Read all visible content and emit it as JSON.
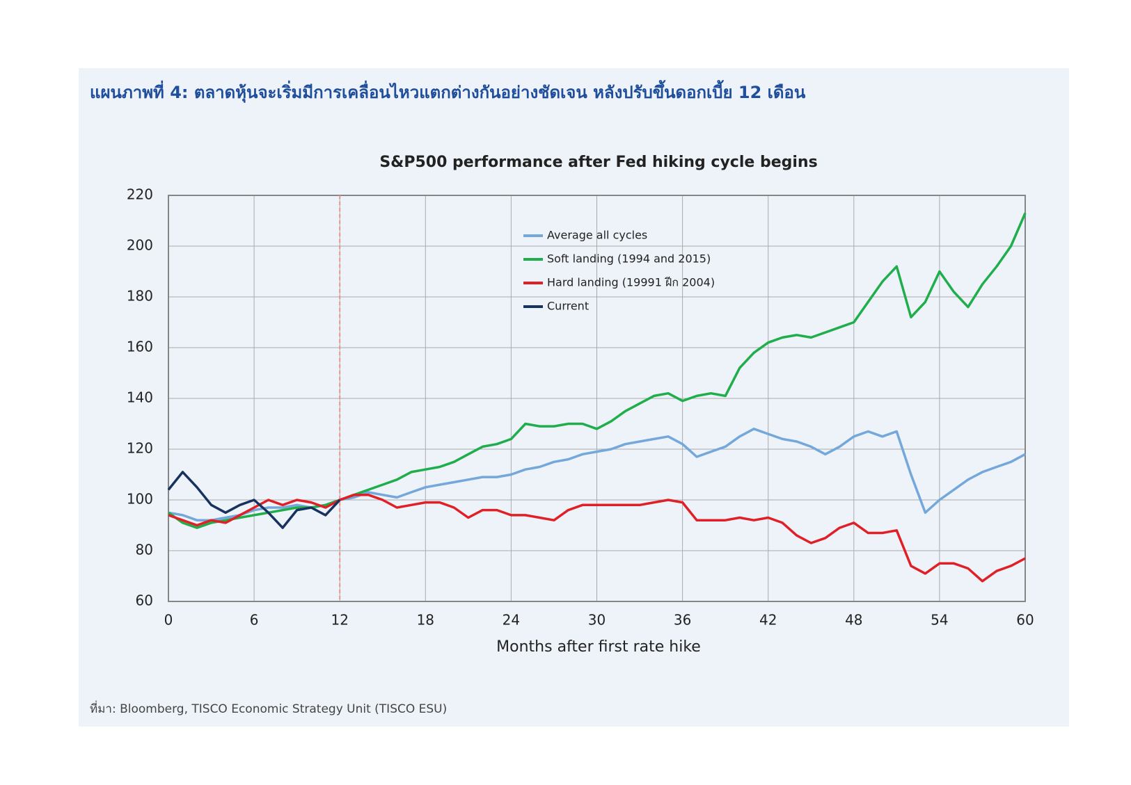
{
  "heading": "แผนภาพที่ 4: ตลาดหุ้นจะเริ่มมีการเคลื่อนไหวแตกต่างกันอย่างชัดเจน หลังปรับขึ้นดอกเบี้ย 12 เดือน",
  "source": "ที่มา: Bloomberg, TISCO Economic Strategy Unit (TISCO ESU)",
  "chart_data": {
    "type": "line",
    "title": "S&P500 performance after Fed hiking cycle begins",
    "x_label": "Months after first rate hike",
    "x": [
      0,
      1,
      2,
      3,
      4,
      5,
      6,
      7,
      8,
      9,
      10,
      11,
      12,
      13,
      14,
      15,
      16,
      17,
      18,
      19,
      20,
      21,
      22,
      23,
      24,
      25,
      26,
      27,
      28,
      29,
      30,
      31,
      32,
      33,
      34,
      35,
      36,
      37,
      38,
      39,
      40,
      41,
      42,
      43,
      44,
      45,
      46,
      47,
      48,
      49,
      50,
      51,
      52,
      53,
      54,
      55,
      56,
      57,
      58,
      59,
      60
    ],
    "xlim": [
      0,
      60
    ],
    "xticks": [
      0,
      6,
      12,
      18,
      24,
      30,
      36,
      42,
      48,
      54,
      60
    ],
    "ylim": [
      60,
      220
    ],
    "yticks": [
      60,
      80,
      100,
      120,
      140,
      160,
      180,
      200,
      220
    ],
    "grid": true,
    "legend": "top-center",
    "reference_line": {
      "x": 12,
      "color": "#f0908a"
    },
    "series": [
      {
        "name": "Average all cycles",
        "color": "#74a7da",
        "values": [
          95,
          94,
          92,
          92,
          93,
          94,
          96,
          97,
          97,
          98,
          97,
          98,
          100,
          101,
          103,
          102,
          101,
          103,
          105,
          106,
          107,
          108,
          109,
          109,
          110,
          112,
          113,
          115,
          116,
          118,
          119,
          120,
          122,
          123,
          124,
          125,
          122,
          117,
          119,
          121,
          125,
          128,
          126,
          124,
          123,
          121,
          118,
          121,
          125,
          127,
          125,
          127,
          110,
          95,
          100,
          104,
          108,
          111,
          113,
          115,
          118
        ]
      },
      {
        "name": "Soft landing (1994 and 2015)",
        "color": "#1fae4b",
        "values": [
          95,
          91,
          89,
          91,
          92,
          93,
          94,
          95,
          96,
          97,
          97,
          98,
          100,
          102,
          104,
          106,
          108,
          111,
          112,
          113,
          115,
          118,
          121,
          122,
          124,
          130,
          129,
          129,
          130,
          130,
          128,
          131,
          135,
          138,
          141,
          142,
          139,
          141,
          142,
          141,
          152,
          158,
          162,
          164,
          165,
          164,
          166,
          168,
          170,
          178,
          186,
          192,
          172,
          178,
          190,
          182,
          176,
          185,
          192,
          200,
          213
        ]
      },
      {
        "name": "Hard landing (19991 ฝีก 2004)",
        "color": "#e02027",
        "values": [
          94,
          92,
          90,
          92,
          91,
          94,
          97,
          100,
          98,
          100,
          99,
          97,
          100,
          102,
          102,
          100,
          97,
          98,
          99,
          99,
          97,
          93,
          96,
          96,
          94,
          94,
          93,
          92,
          96,
          98,
          98,
          98,
          98,
          98,
          99,
          100,
          99,
          92,
          92,
          92,
          93,
          92,
          93,
          91,
          86,
          83,
          85,
          89,
          91,
          87,
          87,
          88,
          74,
          71,
          75,
          75,
          73,
          68,
          72,
          74,
          77
        ]
      },
      {
        "name": "Current",
        "color": "#17325f",
        "values": [
          104,
          111,
          105,
          98,
          95,
          98,
          100,
          95,
          89,
          96,
          97,
          94,
          100,
          null,
          null,
          null,
          null,
          null,
          null,
          null,
          null,
          null,
          null,
          null,
          null,
          null,
          null,
          null,
          null,
          null,
          null,
          null,
          null,
          null,
          null,
          null,
          null,
          null,
          null,
          null,
          null,
          null,
          null,
          null,
          null,
          null,
          null,
          null,
          null,
          null,
          null,
          null,
          null,
          null,
          null,
          null,
          null,
          null,
          null,
          null,
          null
        ]
      }
    ]
  }
}
